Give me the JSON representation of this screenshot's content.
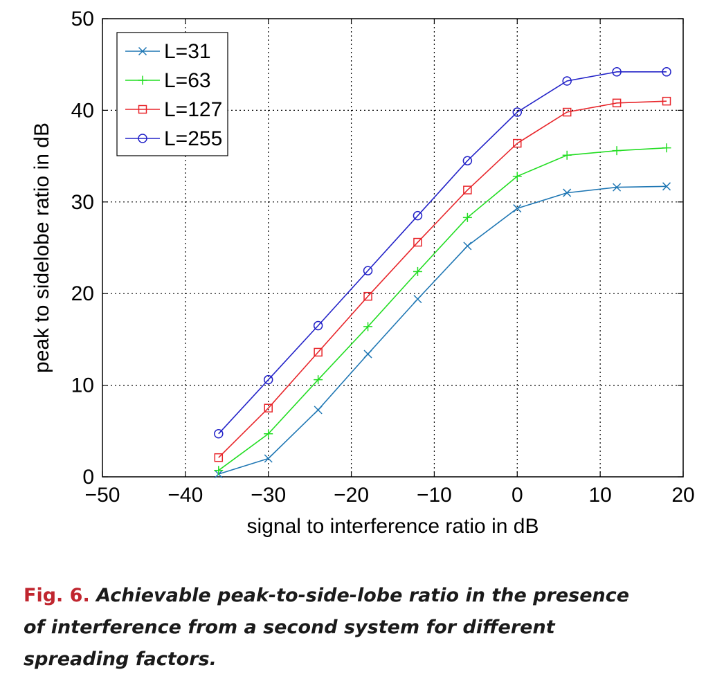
{
  "chart_data": {
    "type": "line",
    "title": "",
    "xlabel": "signal to interference ratio in dB",
    "ylabel": "peak to sidelobe ratio in dB",
    "xlim": [
      -50,
      20
    ],
    "ylim": [
      0,
      50
    ],
    "xticks": [
      -50,
      -40,
      -30,
      -20,
      -10,
      0,
      10,
      20
    ],
    "yticks": [
      0,
      10,
      20,
      30,
      40,
      50
    ],
    "xtick_labels": [
      "−50",
      "−40",
      "−30",
      "−20",
      "−10",
      "0",
      "10",
      "20"
    ],
    "ytick_labels": [
      "0",
      "10",
      "20",
      "30",
      "40",
      "50"
    ],
    "grid": true,
    "legend_position": "top-left",
    "x": [
      -36,
      -30,
      -24,
      -18,
      -12,
      -6,
      0,
      6,
      12,
      18
    ],
    "series": [
      {
        "name": "L=31",
        "color": "#1f77b4",
        "marker": "x",
        "values": [
          0.3,
          2.0,
          7.3,
          13.4,
          19.4,
          25.2,
          29.3,
          31.0,
          31.6,
          31.7
        ]
      },
      {
        "name": "L=63",
        "color": "#22dd22",
        "marker": "plus",
        "values": [
          0.7,
          4.7,
          10.6,
          16.4,
          22.4,
          28.3,
          32.8,
          35.1,
          35.6,
          35.9
        ]
      },
      {
        "name": "L=127",
        "color": "#e8252a",
        "marker": "square",
        "values": [
          2.1,
          7.5,
          13.6,
          19.7,
          25.6,
          31.3,
          36.4,
          39.8,
          40.8,
          41.0
        ]
      },
      {
        "name": "L=255",
        "color": "#2323c8",
        "marker": "circle",
        "values": [
          4.7,
          10.6,
          16.5,
          22.5,
          28.5,
          34.5,
          39.8,
          43.2,
          44.2,
          44.2
        ]
      }
    ]
  },
  "caption": {
    "fig_label": "Fig. 6.",
    "text": "Achievable peak-to-side-lobe ratio in the presence of interference from a second system for different spreading factors."
  }
}
